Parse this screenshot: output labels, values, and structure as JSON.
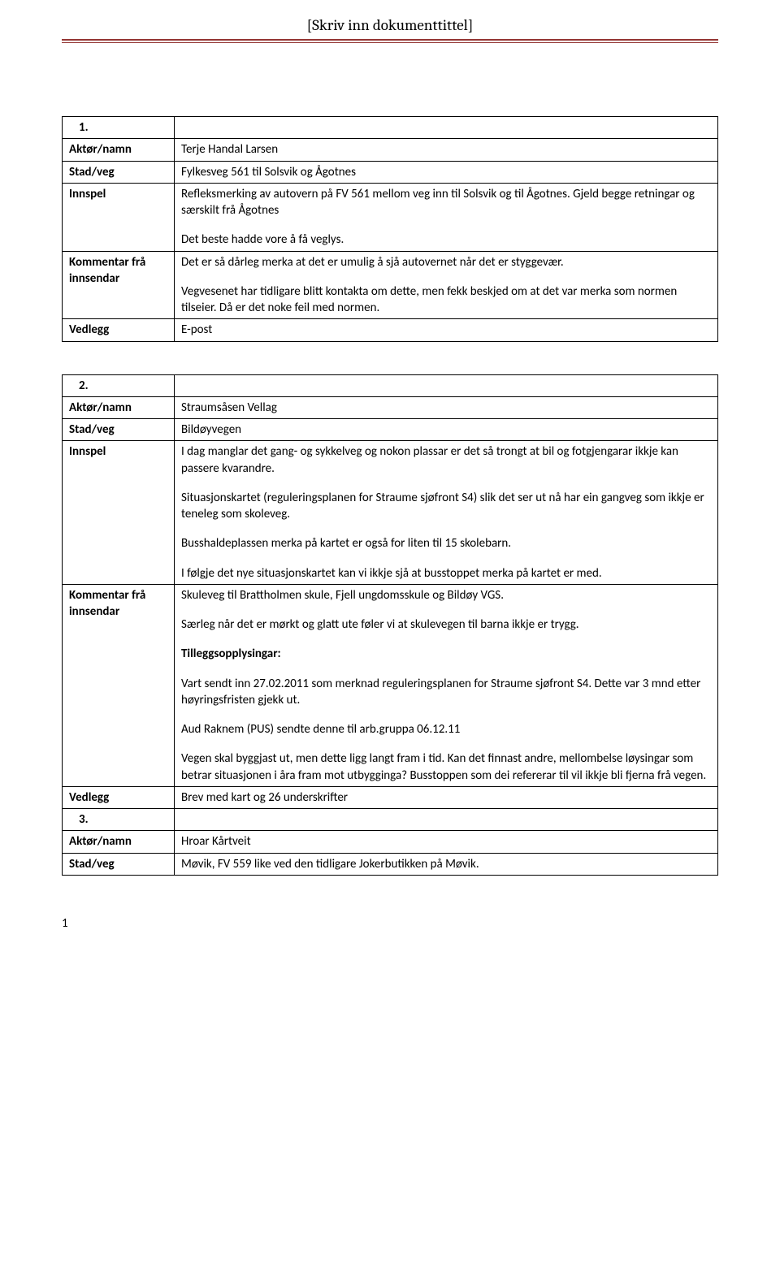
{
  "header": {
    "title": "[Skriv inn dokumenttittel]"
  },
  "pageNumber": "1",
  "tables": [
    {
      "indexLabel": "1.",
      "rows": [
        {
          "label": "Aktør/namn",
          "content": [
            "Terje Handal Larsen"
          ]
        },
        {
          "label": "Stad/veg",
          "content": [
            "Fylkesveg 561 til Solsvik og Ågotnes"
          ]
        },
        {
          "label": "Innspel",
          "content": [
            "Refleksmerking av autovern på FV 561 mellom veg inn til Solsvik og til Ågotnes. Gjeld begge retningar og særskilt frå Ågotnes",
            "Det beste hadde vore å få veglys."
          ]
        },
        {
          "label": "Kommentar frå innsendar",
          "content": [
            "Det er så dårleg merka at det er umulig å sjå autovernet når det er styggevær.",
            "Vegvesenet har tidligare blitt kontakta om dette, men fekk beskjed om at det var merka som normen tilseier. Då er det noke feil med normen."
          ]
        },
        {
          "label": "Vedlegg",
          "content": [
            "E-post"
          ]
        }
      ]
    },
    {
      "indexLabel": "2.",
      "rows": [
        {
          "label": "Aktør/namn",
          "content": [
            "Straumsåsen Vellag"
          ]
        },
        {
          "label": "Stad/veg",
          "content": [
            "Bildøyvegen"
          ]
        },
        {
          "label": "Innspel",
          "content": [
            "I dag manglar det gang- og sykkelveg og nokon plassar er det så trongt at bil og fotgjengarar ikkje kan passere kvarandre.",
            "Situasjonskartet (reguleringsplanen for Straume sjøfront S4) slik det ser ut nå har ein gangveg som ikkje er teneleg som skoleveg.",
            "Busshaldeplassen merka på kartet er også for liten til 15 skolebarn.",
            "I følgje det nye situasjonskartet kan vi ikkje sjå at busstoppet merka på kartet er med."
          ]
        },
        {
          "label": "Kommentar frå innsendar",
          "content": [
            "Skuleveg til Brattholmen skule, Fjell ungdomsskule og Bildøy VGS.",
            "Særleg når det er mørkt og glatt ute føler vi at skulevegen til barna ikkje er trygg.",
            "__BOLD__Tilleggsopplysingar:",
            "Vart sendt inn 27.02.2011 som merknad reguleringsplanen for Straume sjøfront S4. Dette var 3 mnd etter høyringsfristen gjekk ut.",
            "Aud Raknem (PUS) sendte denne til arb.gruppa 06.12.11",
            "Vegen skal byggjast ut, men dette ligg langt fram i tid. Kan det finnast andre, mellombelse løysingar som betrar situasjonen i åra fram mot utbygginga? Busstoppen som dei refererar til vil ikkje bli fjerna frå vegen."
          ]
        },
        {
          "label": "Vedlegg",
          "content": [
            "Brev med kart og 26 underskrifter"
          ]
        }
      ],
      "trailing": {
        "indexLabel": "3.",
        "rows": [
          {
            "label": "Aktør/namn",
            "content": [
              "Hroar Kårtveit"
            ]
          },
          {
            "label": "Stad/veg",
            "content": [
              "Møvik, FV 559 like ved den tidligare Jokerbutikken på Møvik."
            ]
          }
        ]
      }
    }
  ]
}
